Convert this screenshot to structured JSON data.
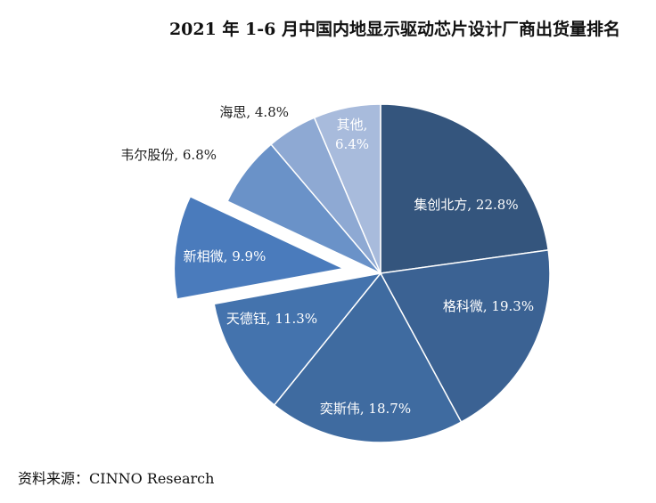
{
  "chart_data": {
    "type": "pie",
    "title": "2021 年 1-6 月中国内地显示驱动芯片设计厂商出货量排名",
    "slices": [
      {
        "name": "集创北方",
        "value": 22.8,
        "label": "集创北方, 22.8%",
        "color": "#34557d",
        "label_color": "#ffffff"
      },
      {
        "name": "格科微",
        "value": 19.3,
        "label": "格科微, 19.3%",
        "color": "#3b6293",
        "label_color": "#ffffff"
      },
      {
        "name": "奕斯伟",
        "value": 18.7,
        "label": "奕斯伟, 18.7%",
        "color": "#3f6ba0",
        "label_color": "#ffffff"
      },
      {
        "name": "天德钰",
        "value": 11.3,
        "label": "天德钰, 11.3%",
        "color": "#4473ad",
        "label_color": "#ffffff"
      },
      {
        "name": "新相微",
        "value": 9.9,
        "label": "新相微, 9.9%",
        "color": "#4a7bbc",
        "label_color": "#ffffff",
        "exploded": true
      },
      {
        "name": "韦尔股份",
        "value": 6.8,
        "label": "韦尔股份, 6.8%",
        "color": "#6a92c8",
        "label_color": "#222222"
      },
      {
        "name": "海思",
        "value": 4.8,
        "label": "海思, 4.8%",
        "color": "#8ea9d3",
        "label_color": "#222222"
      },
      {
        "name": "其他",
        "value": 6.4,
        "label_line1": "其他,",
        "label_line2": "6.4%",
        "color": "#a8bbdc",
        "label_color": "#ffffff"
      }
    ]
  },
  "source": "资料来源：CINNO Research"
}
